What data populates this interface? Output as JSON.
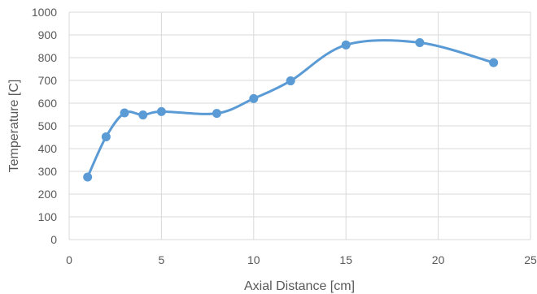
{
  "chart_data": {
    "type": "line",
    "smooth": true,
    "markers": true,
    "xlabel": "Axial Distance [cm]",
    "ylabel": "Temperature [C]",
    "xlim": [
      0,
      25
    ],
    "ylim": [
      0,
      1000
    ],
    "xticks": [
      0,
      5,
      10,
      15,
      20,
      25
    ],
    "yticks": [
      0,
      100,
      200,
      300,
      400,
      500,
      600,
      700,
      800,
      900,
      1000
    ],
    "grid": true,
    "series": [
      {
        "color": "#5b9bd5",
        "points": [
          {
            "x": 1,
            "y": 275
          },
          {
            "x": 2,
            "y": 452
          },
          {
            "x": 3,
            "y": 557
          },
          {
            "x": 4,
            "y": 548
          },
          {
            "x": 5,
            "y": 563
          },
          {
            "x": 8,
            "y": 555
          },
          {
            "x": 10,
            "y": 620
          },
          {
            "x": 12,
            "y": 698
          },
          {
            "x": 15,
            "y": 856
          },
          {
            "x": 19,
            "y": 866
          },
          {
            "x": 23,
            "y": 778
          }
        ]
      }
    ]
  },
  "colors": {
    "grid": "#d9d9d9",
    "text": "#595959",
    "series": "#5b9bd5"
  }
}
